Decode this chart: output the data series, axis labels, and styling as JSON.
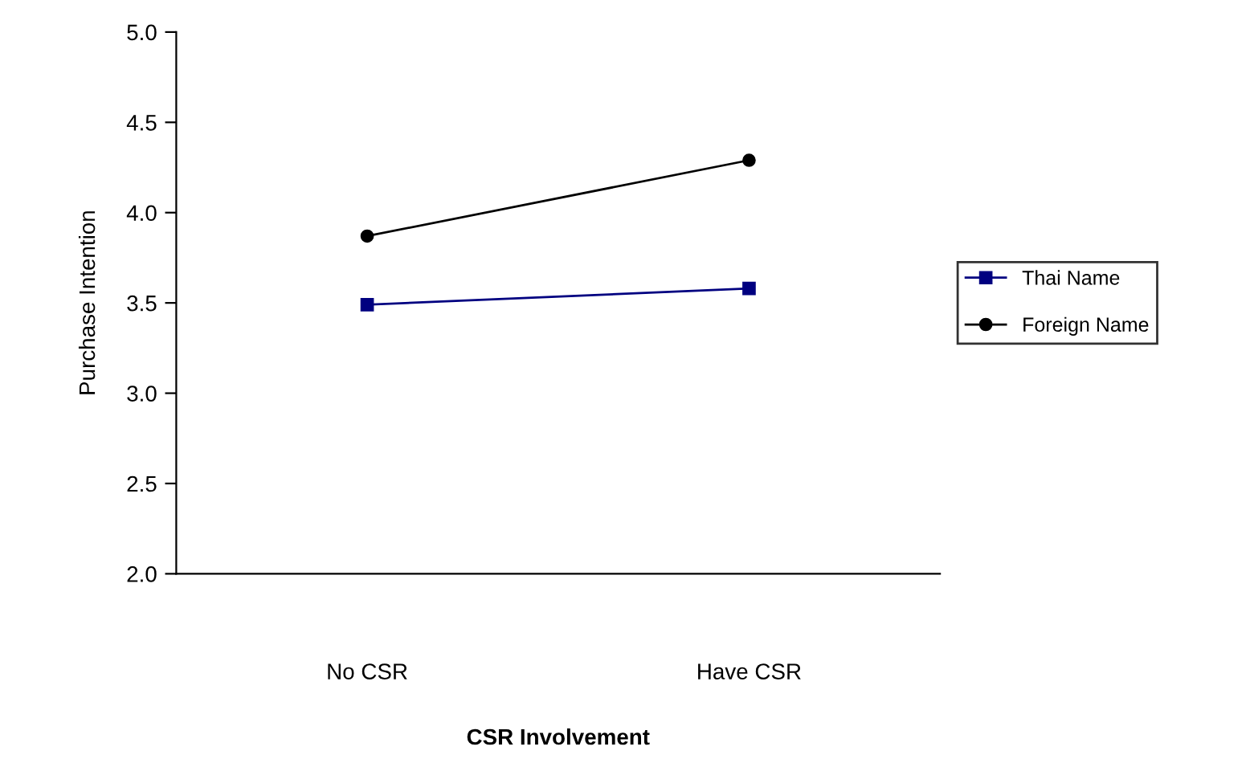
{
  "chart_data": {
    "type": "line",
    "xlabel": "CSR Involvement",
    "ylabel": "Purchase Intention",
    "categories": [
      "No CSR",
      "Have CSR"
    ],
    "series": [
      {
        "name": "Thai Name",
        "color": "#000080",
        "marker": "square",
        "values": [
          3.49,
          3.58
        ]
      },
      {
        "name": "Foreign Name",
        "color": "#000000",
        "marker": "circle",
        "values": [
          3.87,
          4.29
        ]
      }
    ],
    "ylim": [
      2.0,
      5.0
    ],
    "yticks": [
      {
        "value": 2.0,
        "label": "2.0"
      },
      {
        "value": 2.5,
        "label": "2.5"
      },
      {
        "value": 3.0,
        "label": "3.0"
      },
      {
        "value": 3.5,
        "label": "3.5"
      },
      {
        "value": 4.0,
        "label": "4.0"
      },
      {
        "value": 4.5,
        "label": "4.5"
      },
      {
        "value": 5.0,
        "label": "5.0"
      }
    ],
    "grid": false,
    "legend": "right",
    "line_style": "solid"
  }
}
